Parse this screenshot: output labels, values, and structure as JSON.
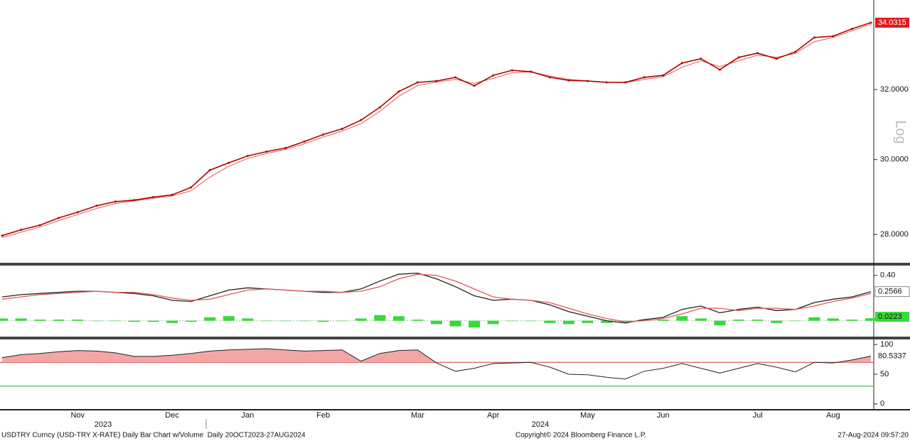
{
  "chart_data": [
    {
      "type": "price",
      "log_scale": true,
      "scale_label": "Log",
      "categories": [
        null,
        null,
        null,
        null,
        "Nov",
        null,
        null,
        null,
        null,
        "Dec",
        null,
        null,
        null,
        "Jan",
        null,
        null,
        null,
        "Feb",
        null,
        null,
        null,
        null,
        "Mar",
        null,
        null,
        null,
        "Apr",
        null,
        null,
        null,
        null,
        "May",
        null,
        null,
        null,
        "Jun",
        null,
        null,
        null,
        null,
        "Jul",
        null,
        null,
        null,
        "Aug",
        null,
        null
      ],
      "series": [
        {
          "color": "#b00000",
          "values": [
            27.97,
            28.12,
            28.24,
            28.43,
            28.58,
            28.75,
            28.86,
            28.9,
            28.98,
            29.04,
            29.24,
            29.71,
            29.91,
            30.1,
            30.22,
            30.32,
            30.5,
            30.7,
            30.86,
            31.11,
            31.48,
            31.94,
            32.21,
            32.25,
            32.36,
            32.11,
            32.42,
            32.57,
            32.53,
            32.36,
            32.27,
            32.25,
            32.21,
            32.21,
            32.36,
            32.42,
            32.79,
            32.92,
            32.59,
            32.96,
            33.09,
            32.92,
            33.13,
            33.57,
            33.61,
            33.84,
            34.0315
          ]
        },
        {
          "color": "#e05a5a",
          "values": [
            27.92,
            28.06,
            28.19,
            28.36,
            28.52,
            28.68,
            28.81,
            28.88,
            28.95,
            29.01,
            29.15,
            29.52,
            29.82,
            30.03,
            30.17,
            30.28,
            30.44,
            30.63,
            30.8,
            31.01,
            31.36,
            31.8,
            32.12,
            32.22,
            32.3,
            32.18,
            32.33,
            32.5,
            32.52,
            32.4,
            32.3,
            32.26,
            32.22,
            32.2,
            32.3,
            32.38,
            32.66,
            32.86,
            32.68,
            32.86,
            33.03,
            32.96,
            33.08,
            33.44,
            33.57,
            33.78,
            33.98
          ]
        }
      ],
      "ylim": [
        27.28,
        34.75
      ],
      "yticks": [
        {
          "value": 28,
          "label": "28.0000"
        },
        {
          "value": 30,
          "label": "30.0000"
        },
        {
          "value": 32,
          "label": "32.0000"
        }
      ]
    },
    {
      "type": "macd",
      "series": [
        {
          "color": "#222222",
          "values": [
            0.21,
            0.23,
            0.24,
            0.25,
            0.26,
            0.26,
            0.25,
            0.24,
            0.22,
            0.18,
            0.17,
            0.22,
            0.27,
            0.29,
            0.28,
            0.27,
            0.26,
            0.25,
            0.25,
            0.28,
            0.35,
            0.41,
            0.42,
            0.37,
            0.3,
            0.22,
            0.18,
            0.19,
            0.18,
            0.14,
            0.08,
            0.04,
            0.0,
            -0.02,
            0.01,
            0.03,
            0.1,
            0.13,
            0.07,
            0.1,
            0.12,
            0.09,
            0.1,
            0.16,
            0.19,
            0.21,
            0.2566
          ]
        },
        {
          "color": "#e05a5a",
          "values": [
            0.19,
            0.21,
            0.23,
            0.24,
            0.25,
            0.26,
            0.25,
            0.25,
            0.23,
            0.2,
            0.18,
            0.19,
            0.23,
            0.27,
            0.28,
            0.27,
            0.26,
            0.26,
            0.25,
            0.26,
            0.3,
            0.37,
            0.41,
            0.4,
            0.35,
            0.28,
            0.21,
            0.19,
            0.18,
            0.16,
            0.11,
            0.06,
            0.02,
            -0.01,
            0.0,
            0.02,
            0.06,
            0.11,
            0.11,
            0.09,
            0.11,
            0.11,
            0.1,
            0.13,
            0.17,
            0.2,
            0.24
          ]
        }
      ],
      "histogram": {
        "color": "#33dd33",
        "values": [
          0.02,
          0.02,
          0.01,
          0.01,
          0.01,
          0,
          0,
          -0.01,
          -0.01,
          -0.02,
          -0.01,
          0.03,
          0.04,
          0.02,
          0,
          0,
          0,
          -0.01,
          0,
          0.02,
          0.05,
          0.04,
          0.01,
          -0.03,
          -0.05,
          -0.06,
          -0.03,
          0,
          0,
          -0.02,
          -0.03,
          -0.02,
          -0.02,
          -0.01,
          0.01,
          0.01,
          0.04,
          0.02,
          -0.04,
          0.01,
          0.01,
          -0.02,
          0,
          0.03,
          0.02,
          0.01,
          0.0223
        ]
      },
      "ylim": [
        -0.14,
        0.48
      ],
      "yticks": [
        {
          "value": 0.4,
          "label": "0.40"
        }
      ]
    },
    {
      "type": "rsi",
      "series": [
        {
          "color": "#222222",
          "values": [
            78,
            83,
            85,
            88,
            90,
            89,
            86,
            80,
            80,
            82,
            85,
            89,
            91,
            92,
            93,
            91,
            89,
            90,
            91,
            72,
            85,
            90,
            91,
            69,
            55,
            60,
            68,
            69,
            70,
            62,
            50,
            49,
            45,
            42,
            55,
            60,
            68,
            60,
            52,
            60,
            68,
            62,
            54,
            70,
            69,
            74,
            80.5337
          ]
        }
      ],
      "levels": [
        {
          "value": 70,
          "color": "#cc2222"
        },
        {
          "value": 30,
          "color": "#22aa22"
        }
      ],
      "ylim": [
        -8.6,
        108.6
      ],
      "yticks": [
        100,
        50,
        0
      ]
    }
  ],
  "x_axis": {
    "years": [
      "2023",
      "2024"
    ]
  },
  "footer": {
    "description": "USDTRY Curncy (USD-TRY X-RATE) Daily Bar Chart w/Volume  Daily 20OCT2023-27AUG2024",
    "copyright": "Copyright© 2024 Bloomberg Finance L.P.",
    "timestamp": "27-Aug-2024 09:57:20"
  }
}
